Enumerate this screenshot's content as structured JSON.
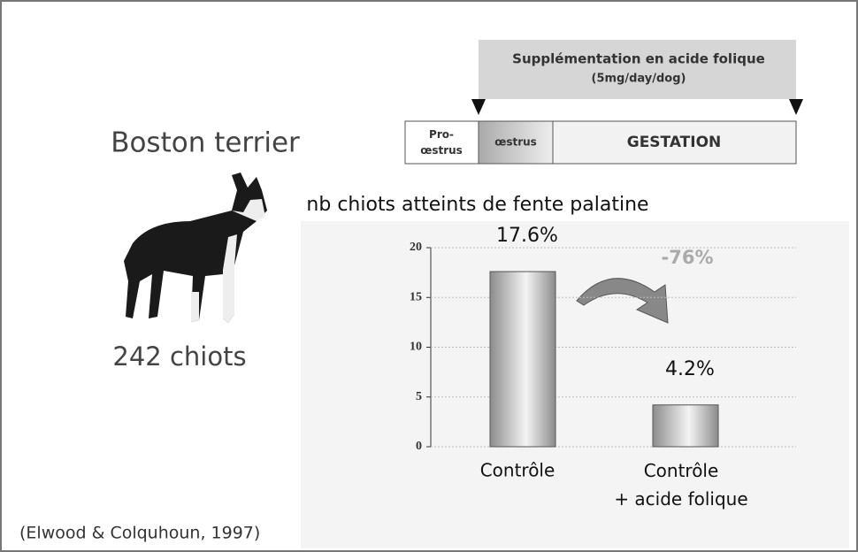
{
  "slide": {
    "breed": "Boston terrier",
    "count": "242 chiots",
    "source": "(Elwood & Colquhoun, 1997)",
    "timeline": {
      "banner_title": "Supplémentation en acide folique",
      "banner_dose": "(5mg/day/dog)",
      "phases": [
        "Pro-\nœstrus",
        "œstrus",
        "GESTATION"
      ]
    }
  },
  "chart_data": {
    "type": "bar",
    "title": "nb chiots atteints de fente palatine",
    "categories": [
      "Contrôle",
      "Contrôle\n+ acide folique"
    ],
    "values": [
      17.6,
      4.2
    ],
    "value_labels": [
      "17.6%",
      "4.2%"
    ],
    "color": "#8c8c8c",
    "ylim": [
      0,
      20
    ],
    "yticks": [
      0,
      5,
      10,
      15,
      20
    ],
    "grid": true,
    "annotation": "-76%"
  }
}
